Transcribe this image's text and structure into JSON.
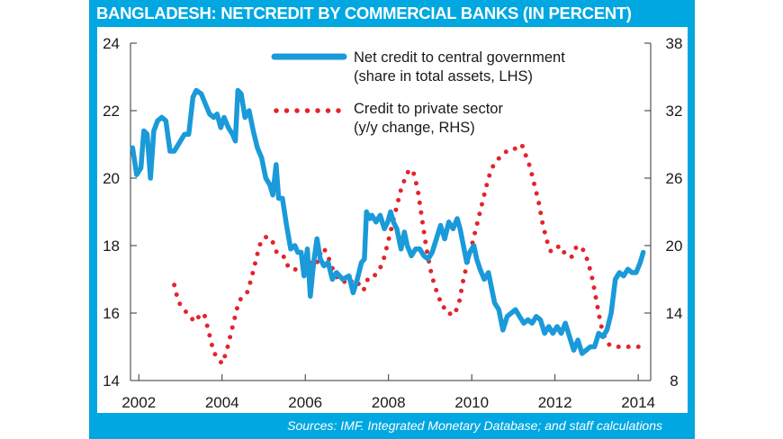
{
  "title": "BANGLADESH: NETCREDIT BY COMMERCIAL BANKS (IN PERCENT)",
  "source": "Sources: IMF. Integrated Monetary Database; and staff calculations",
  "colors": {
    "frame": "#00a7e1",
    "series1": "#1a9ad9",
    "series2": "#e3242b"
  },
  "chart_data": {
    "type": "line",
    "title": "BANGLADESH: NETCREDIT BY COMMERCIAL BANKS (IN PERCENT)",
    "xlim": [
      2001.8,
      2014.3
    ],
    "x_ticks": [
      "2002",
      "2004",
      "2006",
      "2008",
      "2010",
      "2012",
      "2014"
    ],
    "y_left": {
      "lim": [
        14,
        24
      ],
      "ticks": [
        "14",
        "16",
        "18",
        "20",
        "22",
        "24"
      ]
    },
    "y_right": {
      "lim": [
        8,
        38
      ],
      "ticks": [
        "8",
        "14",
        "20",
        "26",
        "32",
        "38"
      ]
    },
    "series": [
      {
        "name": "Net credit to central government",
        "name_line2": "(share in total assets, LHS)",
        "axis": "left",
        "style": "solid",
        "points": [
          [
            2001.85,
            20.9
          ],
          [
            2001.95,
            20.1
          ],
          [
            2002.05,
            20.3
          ],
          [
            2002.12,
            21.4
          ],
          [
            2002.2,
            21.3
          ],
          [
            2002.28,
            20.0
          ],
          [
            2002.36,
            21.4
          ],
          [
            2002.45,
            21.7
          ],
          [
            2002.55,
            21.8
          ],
          [
            2002.65,
            21.7
          ],
          [
            2002.75,
            20.8
          ],
          [
            2002.85,
            20.8
          ],
          [
            2002.95,
            21.0
          ],
          [
            2003.1,
            21.3
          ],
          [
            2003.2,
            21.3
          ],
          [
            2003.3,
            22.4
          ],
          [
            2003.38,
            22.6
          ],
          [
            2003.5,
            22.5
          ],
          [
            2003.6,
            22.2
          ],
          [
            2003.7,
            21.9
          ],
          [
            2003.8,
            21.8
          ],
          [
            2003.88,
            21.9
          ],
          [
            2003.97,
            21.5
          ],
          [
            2004.05,
            21.8
          ],
          [
            2004.15,
            21.5
          ],
          [
            2004.25,
            21.3
          ],
          [
            2004.32,
            21.1
          ],
          [
            2004.38,
            22.6
          ],
          [
            2004.46,
            22.5
          ],
          [
            2004.55,
            21.8
          ],
          [
            2004.65,
            22.0
          ],
          [
            2004.75,
            21.4
          ],
          [
            2004.85,
            20.9
          ],
          [
            2004.95,
            20.6
          ],
          [
            2005.05,
            20.0
          ],
          [
            2005.15,
            19.8
          ],
          [
            2005.22,
            19.5
          ],
          [
            2005.3,
            20.4
          ],
          [
            2005.36,
            19.4
          ],
          [
            2005.45,
            19.4
          ],
          [
            2005.55,
            18.6
          ],
          [
            2005.65,
            17.9
          ],
          [
            2005.75,
            18.0
          ],
          [
            2005.82,
            17.8
          ],
          [
            2005.9,
            17.8
          ],
          [
            2005.97,
            17.1
          ],
          [
            2006.05,
            17.9
          ],
          [
            2006.12,
            16.5
          ],
          [
            2006.2,
            17.5
          ],
          [
            2006.28,
            18.2
          ],
          [
            2006.36,
            17.6
          ],
          [
            2006.45,
            17.4
          ],
          [
            2006.55,
            17.5
          ],
          [
            2006.65,
            17.0
          ],
          [
            2006.75,
            17.2
          ],
          [
            2006.9,
            17.0
          ],
          [
            2007.05,
            17.1
          ],
          [
            2007.15,
            16.6
          ],
          [
            2007.25,
            17.0
          ],
          [
            2007.35,
            17.5
          ],
          [
            2007.42,
            17.6
          ],
          [
            2007.47,
            19.0
          ],
          [
            2007.55,
            18.8
          ],
          [
            2007.6,
            18.9
          ],
          [
            2007.7,
            18.7
          ],
          [
            2007.8,
            18.9
          ],
          [
            2007.9,
            18.5
          ],
          [
            2007.98,
            18.7
          ],
          [
            2008.05,
            19.0
          ],
          [
            2008.12,
            18.7
          ],
          [
            2008.2,
            18.5
          ],
          [
            2008.3,
            17.9
          ],
          [
            2008.38,
            18.4
          ],
          [
            2008.45,
            18.0
          ],
          [
            2008.55,
            17.7
          ],
          [
            2008.65,
            17.9
          ],
          [
            2008.75,
            17.9
          ],
          [
            2008.85,
            17.7
          ],
          [
            2008.95,
            17.6
          ],
          [
            2009.05,
            17.8
          ],
          [
            2009.15,
            18.2
          ],
          [
            2009.25,
            18.6
          ],
          [
            2009.35,
            18.2
          ],
          [
            2009.45,
            18.7
          ],
          [
            2009.55,
            18.5
          ],
          [
            2009.65,
            18.8
          ],
          [
            2009.72,
            18.5
          ],
          [
            2009.8,
            18.0
          ],
          [
            2009.88,
            17.5
          ],
          [
            2009.95,
            17.8
          ],
          [
            2010.05,
            18.0
          ],
          [
            2010.12,
            17.6
          ],
          [
            2010.2,
            17.3
          ],
          [
            2010.3,
            17.0
          ],
          [
            2010.4,
            17.2
          ],
          [
            2010.45,
            16.9
          ],
          [
            2010.55,
            16.3
          ],
          [
            2010.65,
            16.1
          ],
          [
            2010.75,
            15.5
          ],
          [
            2010.85,
            15.9
          ],
          [
            2010.95,
            16.0
          ],
          [
            2011.05,
            16.1
          ],
          [
            2011.15,
            15.9
          ],
          [
            2011.25,
            15.7
          ],
          [
            2011.35,
            15.8
          ],
          [
            2011.45,
            15.7
          ],
          [
            2011.55,
            15.9
          ],
          [
            2011.65,
            15.8
          ],
          [
            2011.75,
            15.4
          ],
          [
            2011.85,
            15.6
          ],
          [
            2011.95,
            15.4
          ],
          [
            2012.05,
            15.6
          ],
          [
            2012.15,
            15.4
          ],
          [
            2012.25,
            15.7
          ],
          [
            2012.35,
            15.3
          ],
          [
            2012.45,
            14.9
          ],
          [
            2012.55,
            15.2
          ],
          [
            2012.65,
            14.8
          ],
          [
            2012.75,
            14.9
          ],
          [
            2012.85,
            15.0
          ],
          [
            2012.95,
            15.0
          ],
          [
            2013.05,
            15.4
          ],
          [
            2013.15,
            15.3
          ],
          [
            2013.25,
            15.5
          ],
          [
            2013.35,
            16.0
          ],
          [
            2013.45,
            17.0
          ],
          [
            2013.55,
            17.2
          ],
          [
            2013.65,
            17.1
          ],
          [
            2013.75,
            17.3
          ],
          [
            2013.85,
            17.2
          ],
          [
            2013.95,
            17.2
          ],
          [
            2014.05,
            17.5
          ],
          [
            2014.12,
            17.8
          ]
        ]
      },
      {
        "name": "Credit to private sector",
        "name_line2": "(y/y change, RHS)",
        "axis": "right",
        "style": "dotted",
        "points": [
          [
            2002.85,
            16.5
          ],
          [
            2002.95,
            15.0
          ],
          [
            2003.05,
            14.5
          ],
          [
            2003.2,
            13.8
          ],
          [
            2003.35,
            13.2
          ],
          [
            2003.5,
            14.0
          ],
          [
            2003.58,
            13.8
          ],
          [
            2003.7,
            12.0
          ],
          [
            2003.8,
            10.5
          ],
          [
            2003.9,
            10.0
          ],
          [
            2004.0,
            9.5
          ],
          [
            2004.1,
            10.5
          ],
          [
            2004.2,
            12.0
          ],
          [
            2004.3,
            13.5
          ],
          [
            2004.4,
            15.0
          ],
          [
            2004.5,
            15.5
          ],
          [
            2004.6,
            15.8
          ],
          [
            2004.7,
            17.0
          ],
          [
            2004.8,
            18.5
          ],
          [
            2004.9,
            20.0
          ],
          [
            2005.0,
            20.7
          ],
          [
            2005.1,
            20.8
          ],
          [
            2005.2,
            20.5
          ],
          [
            2005.3,
            19.5
          ],
          [
            2005.4,
            19.0
          ],
          [
            2005.5,
            19.0
          ],
          [
            2005.6,
            18.0
          ],
          [
            2005.7,
            18.0
          ],
          [
            2005.8,
            17.8
          ],
          [
            2005.9,
            18.2
          ],
          [
            2006.0,
            18.0
          ],
          [
            2006.1,
            18.5
          ],
          [
            2006.2,
            18.8
          ],
          [
            2006.3,
            18.5
          ],
          [
            2006.4,
            19.8
          ],
          [
            2006.5,
            19.5
          ],
          [
            2006.6,
            18.5
          ],
          [
            2006.7,
            17.5
          ],
          [
            2006.8,
            17.0
          ],
          [
            2006.9,
            17.0
          ],
          [
            2007.0,
            16.5
          ],
          [
            2007.1,
            16.8
          ],
          [
            2007.2,
            17.0
          ],
          [
            2007.3,
            16.5
          ],
          [
            2007.4,
            16.0
          ],
          [
            2007.5,
            17.0
          ],
          [
            2007.6,
            17.0
          ],
          [
            2007.7,
            17.5
          ],
          [
            2007.8,
            18.0
          ],
          [
            2007.9,
            19.0
          ],
          [
            2008.0,
            20.5
          ],
          [
            2008.1,
            22.0
          ],
          [
            2008.2,
            23.5
          ],
          [
            2008.3,
            25.0
          ],
          [
            2008.4,
            26.0
          ],
          [
            2008.5,
            26.8
          ],
          [
            2008.6,
            26.5
          ],
          [
            2008.7,
            25.0
          ],
          [
            2008.8,
            22.5
          ],
          [
            2008.9,
            20.0
          ],
          [
            2009.0,
            18.0
          ],
          [
            2009.1,
            16.5
          ],
          [
            2009.2,
            15.5
          ],
          [
            2009.3,
            14.5
          ],
          [
            2009.4,
            14.5
          ],
          [
            2009.5,
            13.8
          ],
          [
            2009.6,
            14.0
          ],
          [
            2009.7,
            15.0
          ],
          [
            2009.8,
            17.0
          ],
          [
            2009.9,
            18.5
          ],
          [
            2010.0,
            20.0
          ],
          [
            2010.1,
            21.5
          ],
          [
            2010.2,
            23.0
          ],
          [
            2010.3,
            24.5
          ],
          [
            2010.4,
            26.0
          ],
          [
            2010.5,
            27.0
          ],
          [
            2010.6,
            27.5
          ],
          [
            2010.7,
            28.0
          ],
          [
            2010.8,
            28.3
          ],
          [
            2010.9,
            28.5
          ],
          [
            2011.0,
            28.5
          ],
          [
            2011.1,
            28.8
          ],
          [
            2011.2,
            29.0
          ],
          [
            2011.3,
            28.0
          ],
          [
            2011.4,
            27.0
          ],
          [
            2011.5,
            25.5
          ],
          [
            2011.6,
            24.0
          ],
          [
            2011.7,
            22.0
          ],
          [
            2011.8,
            20.5
          ],
          [
            2011.9,
            19.5
          ],
          [
            2012.0,
            19.5
          ],
          [
            2012.1,
            20.0
          ],
          [
            2012.2,
            19.5
          ],
          [
            2012.3,
            19.0
          ],
          [
            2012.4,
            19.0
          ],
          [
            2012.5,
            19.8
          ],
          [
            2012.6,
            20.0
          ],
          [
            2012.7,
            19.5
          ],
          [
            2012.8,
            18.5
          ],
          [
            2012.9,
            17.0
          ],
          [
            2013.0,
            15.0
          ],
          [
            2013.1,
            13.0
          ],
          [
            2013.2,
            11.8
          ],
          [
            2013.3,
            11.2
          ],
          [
            2013.4,
            11.0
          ],
          [
            2013.5,
            11.0
          ],
          [
            2013.6,
            11.0
          ],
          [
            2013.7,
            11.0
          ],
          [
            2013.8,
            11.0
          ],
          [
            2013.9,
            11.0
          ],
          [
            2014.0,
            11.0
          ],
          [
            2014.1,
            10.9
          ]
        ]
      }
    ]
  }
}
